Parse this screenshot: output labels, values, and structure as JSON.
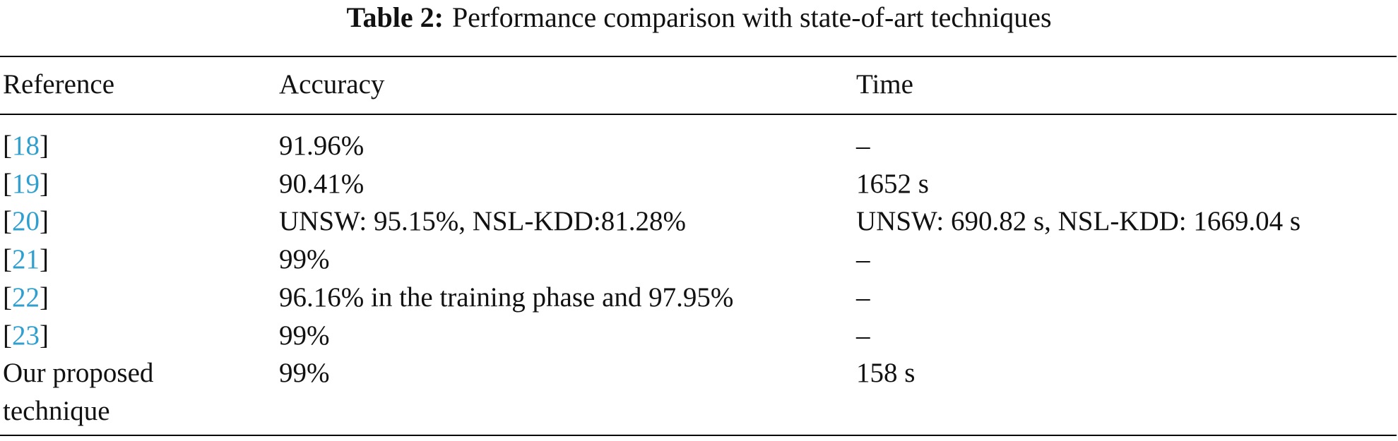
{
  "title": {
    "label": "Table 2:",
    "text": "Performance comparison with state-of-art techniques"
  },
  "table": {
    "header": [
      "Reference",
      "Accuracy",
      "Time"
    ],
    "rows": [
      {
        "reference": [
          "[",
          "18",
          "]"
        ],
        "accuracy": "91.96%",
        "time": "–"
      },
      {
        "reference": [
          "[",
          "19",
          "]"
        ],
        "accuracy": "90.41%",
        "time": "1652 s"
      },
      {
        "reference": [
          "[",
          "20",
          "]"
        ],
        "accuracy": "UNSW: 95.15%, NSL-KDD:81.28%",
        "time": "UNSW: 690.82 s, NSL-KDD: 1669.04 s"
      },
      {
        "reference": [
          "[",
          "21",
          "]"
        ],
        "accuracy": "99%",
        "time": "–"
      },
      {
        "reference": [
          "[",
          "22",
          "]"
        ],
        "accuracy": "96.16% in the training phase and 97.95%",
        "time": "–"
      },
      {
        "reference": [
          "[",
          "23",
          "]"
        ],
        "accuracy": "99%",
        "time": "–"
      },
      {
        "reference": [
          "Our proposed technique"
        ],
        "accuracy": "99%",
        "time": "158 s"
      }
    ]
  }
}
